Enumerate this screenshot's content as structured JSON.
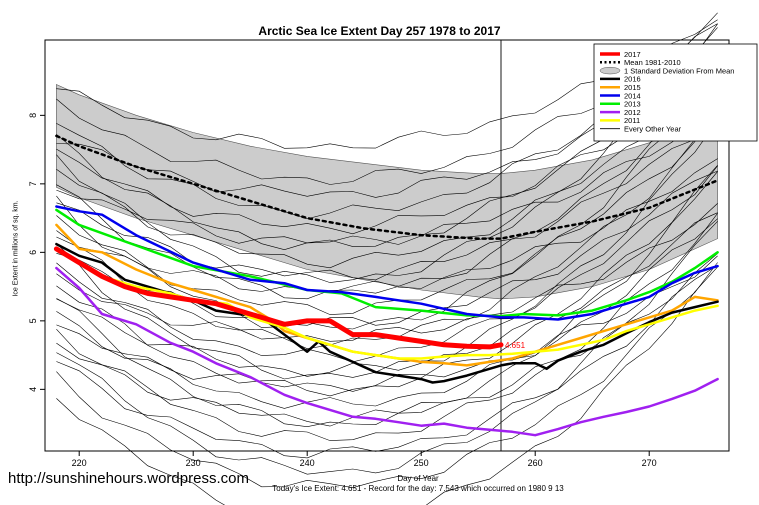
{
  "page": {
    "title": "Arctic Sea Ice Extent Day 257 1978 to 2017",
    "watermark": "http://sunshinehours.wordpress.com",
    "subtitle": "Today's Ice Extent: 4.651  - Record for the day: 7.543 which occurred on 1980 9 13"
  },
  "chart_data": {
    "type": "line",
    "title": "Arctic Sea Ice Extent Day 257 1978 to 2017",
    "xlabel": "Day of Year",
    "ylabel": "Ice Extent in millions of sq. km.",
    "xlim": [
      217,
      277
    ],
    "ylim": [
      3.1,
      9.1
    ],
    "xticks": [
      220,
      230,
      240,
      250,
      260,
      270
    ],
    "yticks": [
      4,
      5,
      6,
      7,
      8
    ],
    "current_day_marker": 257,
    "value_annotation": "4.651",
    "legend_position": "top-right",
    "legend": [
      "2017",
      "Mean 1981-2010",
      "1 Standard Deviation From Mean",
      "2016",
      "2015",
      "2014",
      "2013",
      "2012",
      "2011",
      "Every Other Year"
    ],
    "std_band": {
      "name": "1 Standard Deviation From Mean",
      "x": [
        218,
        220,
        225,
        230,
        235,
        240,
        245,
        250,
        255,
        257,
        260,
        265,
        270,
        276
      ],
      "upper": [
        8.45,
        8.3,
        8.0,
        7.75,
        7.55,
        7.4,
        7.3,
        7.2,
        7.15,
        7.15,
        7.2,
        7.35,
        7.6,
        8.05
      ],
      "lower": [
        6.95,
        6.8,
        6.5,
        6.25,
        6.0,
        5.75,
        5.6,
        5.45,
        5.35,
        5.32,
        5.35,
        5.5,
        5.75,
        6.2
      ],
      "color": "#cccccc"
    },
    "series": [
      {
        "name": "Mean 1981-2010",
        "color": "#000000",
        "dashed": true,
        "width": 2.5,
        "x": [
          218,
          220,
          225,
          230,
          235,
          240,
          245,
          250,
          255,
          257,
          260,
          265,
          270,
          276
        ],
        "y": [
          7.7,
          7.55,
          7.25,
          7.0,
          6.75,
          6.5,
          6.35,
          6.25,
          6.2,
          6.2,
          6.3,
          6.45,
          6.65,
          7.05
        ]
      },
      {
        "name": "2012",
        "color": "#a020f0",
        "width": 2.5,
        "x": [
          218,
          220,
          222,
          225,
          228,
          230,
          232,
          235,
          238,
          240,
          242,
          244,
          246,
          248,
          250,
          252,
          254,
          256,
          258,
          260,
          262,
          264,
          266,
          268,
          270,
          272,
          274,
          276
        ],
        "y": [
          5.77,
          5.48,
          5.1,
          4.95,
          4.68,
          4.55,
          4.38,
          4.18,
          3.92,
          3.8,
          3.7,
          3.6,
          3.57,
          3.52,
          3.47,
          3.5,
          3.44,
          3.41,
          3.38,
          3.33,
          3.42,
          3.52,
          3.6,
          3.67,
          3.75,
          3.86,
          3.98,
          4.15
        ]
      },
      {
        "name": "2013",
        "color": "#00ee00",
        "width": 2.5,
        "x": [
          218,
          220,
          225,
          230,
          235,
          240,
          243,
          246,
          250,
          254,
          257,
          259,
          262,
          265,
          268,
          270,
          272,
          274,
          276
        ],
        "y": [
          6.62,
          6.4,
          6.1,
          5.8,
          5.65,
          5.45,
          5.4,
          5.2,
          5.15,
          5.08,
          5.07,
          5.1,
          5.08,
          5.15,
          5.3,
          5.42,
          5.57,
          5.77,
          6.0
        ]
      },
      {
        "name": "2014",
        "color": "#0000ee",
        "width": 2.5,
        "x": [
          218,
          220,
          222,
          225,
          230,
          235,
          238,
          240,
          243,
          246,
          250,
          254,
          257,
          259,
          262,
          265,
          268,
          270,
          272,
          274,
          276
        ],
        "y": [
          6.67,
          6.6,
          6.55,
          6.25,
          5.85,
          5.6,
          5.55,
          5.45,
          5.42,
          5.35,
          5.25,
          5.1,
          5.05,
          5.05,
          5.02,
          5.1,
          5.25,
          5.35,
          5.55,
          5.7,
          5.8
        ]
      },
      {
        "name": "2015",
        "color": "#ffa500",
        "width": 2.5,
        "x": [
          218,
          220,
          222,
          225,
          228,
          230,
          233,
          235,
          237,
          238,
          240,
          242,
          244,
          246,
          248,
          250,
          252,
          254,
          256,
          258,
          260,
          262,
          264,
          266,
          268,
          270,
          272,
          274,
          276
        ],
        "y": [
          6.4,
          6.05,
          6.0,
          5.75,
          5.55,
          5.45,
          5.3,
          5.2,
          5.0,
          4.85,
          4.75,
          4.65,
          4.55,
          4.5,
          4.45,
          4.4,
          4.38,
          4.35,
          4.4,
          4.45,
          4.55,
          4.65,
          4.75,
          4.85,
          4.95,
          5.05,
          5.15,
          5.35,
          5.3
        ]
      },
      {
        "name": "2016",
        "color": "#000000",
        "width": 2.5,
        "x": [
          218,
          220,
          222,
          224,
          226,
          228,
          230,
          232,
          234,
          236,
          238,
          240,
          241,
          242,
          244,
          246,
          248,
          250,
          251,
          252,
          254,
          256,
          257,
          258,
          260,
          261,
          262,
          264,
          266,
          268,
          270,
          272,
          274,
          276
        ],
        "y": [
          6.12,
          5.95,
          5.85,
          5.6,
          5.5,
          5.4,
          5.3,
          5.15,
          5.1,
          5.05,
          4.8,
          4.55,
          4.7,
          4.55,
          4.4,
          4.25,
          4.2,
          4.15,
          4.1,
          4.12,
          4.2,
          4.3,
          4.35,
          4.38,
          4.38,
          4.3,
          4.42,
          4.55,
          4.65,
          4.82,
          4.98,
          5.12,
          5.2,
          5.28
        ]
      },
      {
        "name": "2011",
        "color": "#ffff00",
        "width": 2.5,
        "x": [
          218,
          220,
          222,
          225,
          228,
          230,
          233,
          235,
          238,
          240,
          242,
          244,
          246,
          248,
          250,
          252,
          254,
          256,
          258,
          260,
          262,
          264,
          266,
          268,
          270,
          272,
          274,
          276
        ],
        "y": [
          6.05,
          5.85,
          5.65,
          5.5,
          5.4,
          5.3,
          5.25,
          5.05,
          4.9,
          4.75,
          4.65,
          4.55,
          4.5,
          4.45,
          4.45,
          4.48,
          4.5,
          4.5,
          4.52,
          4.55,
          4.58,
          4.65,
          4.72,
          4.85,
          4.95,
          5.05,
          5.15,
          5.22
        ]
      },
      {
        "name": "2017",
        "color": "#ff0000",
        "width": 5,
        "x": [
          218,
          220,
          222,
          224,
          226,
          228,
          230,
          232,
          234,
          236,
          238,
          240,
          242,
          244,
          246,
          248,
          250,
          252,
          254,
          256,
          257
        ],
        "y": [
          6.05,
          5.85,
          5.65,
          5.5,
          5.4,
          5.35,
          5.3,
          5.25,
          5.15,
          5.05,
          4.95,
          5.0,
          5.0,
          4.8,
          4.8,
          4.75,
          4.7,
          4.65,
          4.63,
          4.62,
          4.651
        ]
      }
    ]
  }
}
